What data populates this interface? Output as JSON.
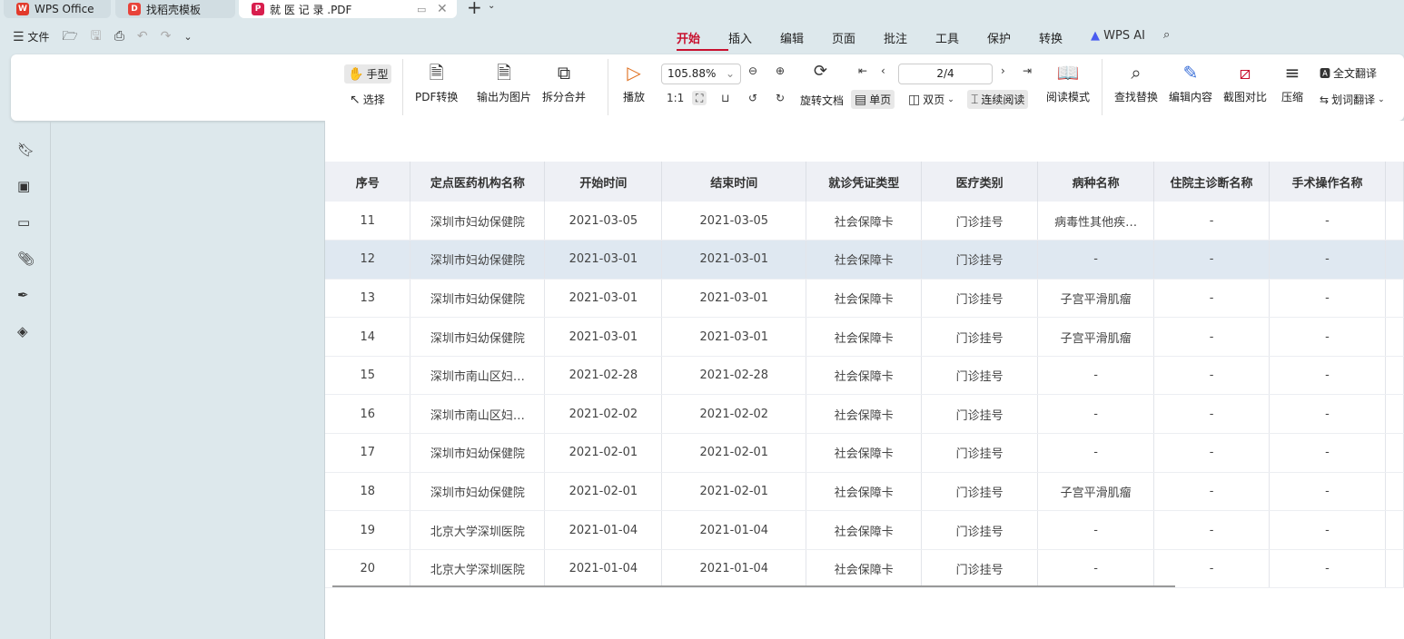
{
  "tabs": [
    {
      "label": "WPS Office",
      "color": "#e23a2b"
    },
    {
      "label": "找稻壳模板",
      "color": "#e8433a"
    },
    {
      "label": "就 医 记 录 .PDF",
      "color": "#d81e4d"
    }
  ],
  "quick": {
    "file": "文件"
  },
  "menu": [
    "开始",
    "插入",
    "编辑",
    "页面",
    "批注",
    "工具",
    "保护",
    "转换",
    "WPS AI"
  ],
  "ribbon": {
    "hand": "手型",
    "select": "选择",
    "pdf_convert": "PDF转换",
    "export_image": "输出为图片",
    "split_merge": "拆分合并",
    "play": "播放",
    "zoom": "105.88%",
    "page": "2/4",
    "rotate": "旋转文档",
    "single": "单页",
    "double": "双页",
    "continuous": "连续阅读",
    "read_mode": "阅读模式",
    "find_replace": "查找替换",
    "edit_content": "编辑内容",
    "screenshot_compare": "截图对比",
    "compress": "压缩",
    "full_translate": "全文翻译",
    "word_translate": "划词翻译"
  },
  "table": {
    "headers": [
      "序号",
      "定点医药机构名称",
      "开始时间",
      "结束时间",
      "就诊凭证类型",
      "医疗类别",
      "病种名称",
      "住院主诊断名称",
      "手术操作名称"
    ],
    "rows": [
      [
        "11",
        "深圳市妇幼保健院",
        "2021-03-05",
        "2021-03-05",
        "社会保障卡",
        "门诊挂号",
        "病毒性其他疾…",
        "-",
        "-"
      ],
      [
        "12",
        "深圳市妇幼保健院",
        "2021-03-01",
        "2021-03-01",
        "社会保障卡",
        "门诊挂号",
        "-",
        "-",
        "-"
      ],
      [
        "13",
        "深圳市妇幼保健院",
        "2021-03-01",
        "2021-03-01",
        "社会保障卡",
        "门诊挂号",
        "子宫平滑肌瘤",
        "-",
        "-"
      ],
      [
        "14",
        "深圳市妇幼保健院",
        "2021-03-01",
        "2021-03-01",
        "社会保障卡",
        "门诊挂号",
        "子宫平滑肌瘤",
        "-",
        "-"
      ],
      [
        "15",
        "深圳市南山区妇…",
        "2021-02-28",
        "2021-02-28",
        "社会保障卡",
        "门诊挂号",
        "-",
        "-",
        "-"
      ],
      [
        "16",
        "深圳市南山区妇…",
        "2021-02-02",
        "2021-02-02",
        "社会保障卡",
        "门诊挂号",
        "-",
        "-",
        "-"
      ],
      [
        "17",
        "深圳市妇幼保健院",
        "2021-02-01",
        "2021-02-01",
        "社会保障卡",
        "门诊挂号",
        "-",
        "-",
        "-"
      ],
      [
        "18",
        "深圳市妇幼保健院",
        "2021-02-01",
        "2021-02-01",
        "社会保障卡",
        "门诊挂号",
        "子宫平滑肌瘤",
        "-",
        "-"
      ],
      [
        "19",
        "北京大学深圳医院",
        "2021-01-04",
        "2021-01-04",
        "社会保障卡",
        "门诊挂号",
        "-",
        "-",
        "-"
      ],
      [
        "20",
        "北京大学深圳医院",
        "2021-01-04",
        "2021-01-04",
        "社会保障卡",
        "门诊挂号",
        "-",
        "-",
        "-"
      ]
    ]
  }
}
